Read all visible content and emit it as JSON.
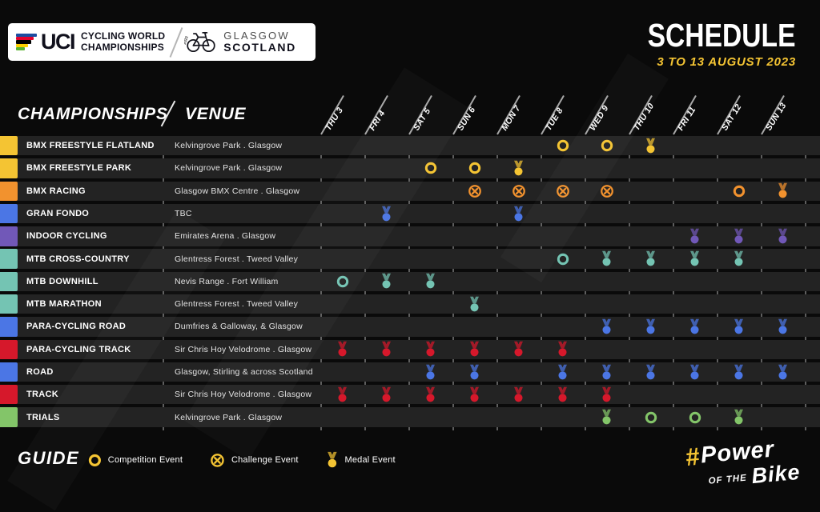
{
  "header": {
    "uci": "UCI",
    "championships_line1": "CYCLING WORLD",
    "championships_line2": "CHAMPIONSHIPS",
    "bike_year": "2023",
    "city": "GLASGOW",
    "country": "SCOTLAND",
    "uci_stripe_colors": [
      "#1C4DA1",
      "#E3032E",
      "#000000",
      "#FFD100",
      "#5CB531"
    ]
  },
  "chart_data": {
    "type": "table",
    "title": "SCHEDULE",
    "subtitle": "3 TO 13 AUGUST 2023",
    "col_championships": "CHAMPIONSHIPS",
    "col_venue": "VENUE",
    "days": [
      "THU 3",
      "FRI 4",
      "SAT 5",
      "SUN 6",
      "MON 7",
      "TUE 8",
      "WED 9",
      "THU 10",
      "FRI 11",
      "SAT 12",
      "SUN 13"
    ],
    "rows": [
      {
        "name": "BMX FREESTYLE FLATLAND",
        "venue": "Kelvingrove Park . Glasgow",
        "color": "#F4C433",
        "events": [
          [
            "TUE 8",
            "competition"
          ],
          [
            "WED 9",
            "competition"
          ],
          [
            "THU 10",
            "medal"
          ]
        ]
      },
      {
        "name": "BMX FREESTYLE PARK",
        "venue": "Kelvingrove Park . Glasgow",
        "color": "#F4C433",
        "events": [
          [
            "SAT 5",
            "competition"
          ],
          [
            "SUN 6",
            "competition"
          ],
          [
            "MON 7",
            "medal"
          ]
        ]
      },
      {
        "name": "BMX RACING",
        "venue": "Glasgow BMX Centre . Glasgow",
        "color": "#F2922E",
        "events": [
          [
            "SUN 6",
            "challenge"
          ],
          [
            "MON 7",
            "challenge"
          ],
          [
            "TUE 8",
            "challenge"
          ],
          [
            "WED 9",
            "challenge"
          ],
          [
            "SAT 12",
            "competition"
          ],
          [
            "SUN 13",
            "medal"
          ]
        ]
      },
      {
        "name": "GRAN FONDO",
        "venue": "TBC",
        "color": "#4B76E5",
        "events": [
          [
            "FRI 4",
            "medal"
          ],
          [
            "MON 7",
            "medal"
          ]
        ]
      },
      {
        "name": "INDOOR CYCLING",
        "venue": "Emirates Arena . Glasgow",
        "color": "#7158B8",
        "events": [
          [
            "FRI 11",
            "medal"
          ],
          [
            "SAT 12",
            "medal"
          ],
          [
            "SUN 13",
            "medal"
          ]
        ]
      },
      {
        "name": "MTB CROSS-COUNTRY",
        "venue": "Glentress Forest . Tweed Valley",
        "color": "#74C4B3",
        "events": [
          [
            "TUE 8",
            "competition"
          ],
          [
            "WED 9",
            "medal"
          ],
          [
            "THU 10",
            "medal"
          ],
          [
            "FRI 11",
            "medal"
          ],
          [
            "SAT 12",
            "medal"
          ]
        ]
      },
      {
        "name": "MTB DOWNHILL",
        "venue": "Nevis Range . Fort William",
        "color": "#74C4B3",
        "events": [
          [
            "THU 3",
            "competition"
          ],
          [
            "FRI 4",
            "medal"
          ],
          [
            "SAT 5",
            "medal"
          ]
        ]
      },
      {
        "name": "MTB MARATHON",
        "venue": "Glentress Forest . Tweed Valley",
        "color": "#74C4B3",
        "events": [
          [
            "SUN 6",
            "medal"
          ]
        ]
      },
      {
        "name": "PARA-CYCLING ROAD",
        "venue": "Dumfries & Galloway, & Glasgow",
        "color": "#4B76E5",
        "events": [
          [
            "WED 9",
            "medal"
          ],
          [
            "THU 10",
            "medal"
          ],
          [
            "FRI 11",
            "medal"
          ],
          [
            "SAT 12",
            "medal"
          ],
          [
            "SUN 13",
            "medal"
          ]
        ]
      },
      {
        "name": "PARA-CYCLING TRACK",
        "venue": "Sir Chris Hoy Velodrome . Glasgow",
        "color": "#D6182B",
        "events": [
          [
            "THU 3",
            "medal"
          ],
          [
            "FRI 4",
            "medal"
          ],
          [
            "SAT 5",
            "medal"
          ],
          [
            "SUN 6",
            "medal"
          ],
          [
            "MON 7",
            "medal"
          ],
          [
            "TUE 8",
            "medal"
          ]
        ]
      },
      {
        "name": "ROAD",
        "venue": "Glasgow, Stirling & across Scotland",
        "color": "#4B76E5",
        "events": [
          [
            "SAT 5",
            "medal"
          ],
          [
            "SUN 6",
            "medal"
          ],
          [
            "TUE 8",
            "medal"
          ],
          [
            "WED 9",
            "medal"
          ],
          [
            "THU 10",
            "medal"
          ],
          [
            "FRI 11",
            "medal"
          ],
          [
            "SAT 12",
            "medal"
          ],
          [
            "SUN 13",
            "medal"
          ]
        ]
      },
      {
        "name": "TRACK",
        "venue": "Sir Chris Hoy Velodrome . Glasgow",
        "color": "#D6182B",
        "events": [
          [
            "THU 3",
            "medal"
          ],
          [
            "FRI 4",
            "medal"
          ],
          [
            "SAT 5",
            "medal"
          ],
          [
            "SUN 6",
            "medal"
          ],
          [
            "MON 7",
            "medal"
          ],
          [
            "TUE 8",
            "medal"
          ],
          [
            "WED 9",
            "medal"
          ]
        ]
      },
      {
        "name": "TRIALS",
        "venue": "Kelvingrove Park . Glasgow",
        "color": "#83C569",
        "events": [
          [
            "WED 9",
            "medal"
          ],
          [
            "THU 10",
            "competition"
          ],
          [
            "FRI 11",
            "competition"
          ],
          [
            "SAT 12",
            "medal"
          ]
        ]
      }
    ],
    "legend": {
      "title": "GUIDE",
      "icon_color": "#F4C433",
      "items": [
        {
          "type": "competition",
          "label": "Competition Event"
        },
        {
          "type": "challenge",
          "label": "Challenge Event"
        },
        {
          "type": "medal",
          "label": "Medal Event"
        }
      ]
    }
  },
  "footer_logo": {
    "hash": "#",
    "line1": "Power",
    "line2_small": "OF THE",
    "line2_big": "Bike"
  },
  "colors": {
    "accent_yellow": "#F4C433",
    "row_bg": "#232323",
    "page_bg": "#0A0A0A",
    "divider": "#5E5E5E"
  }
}
